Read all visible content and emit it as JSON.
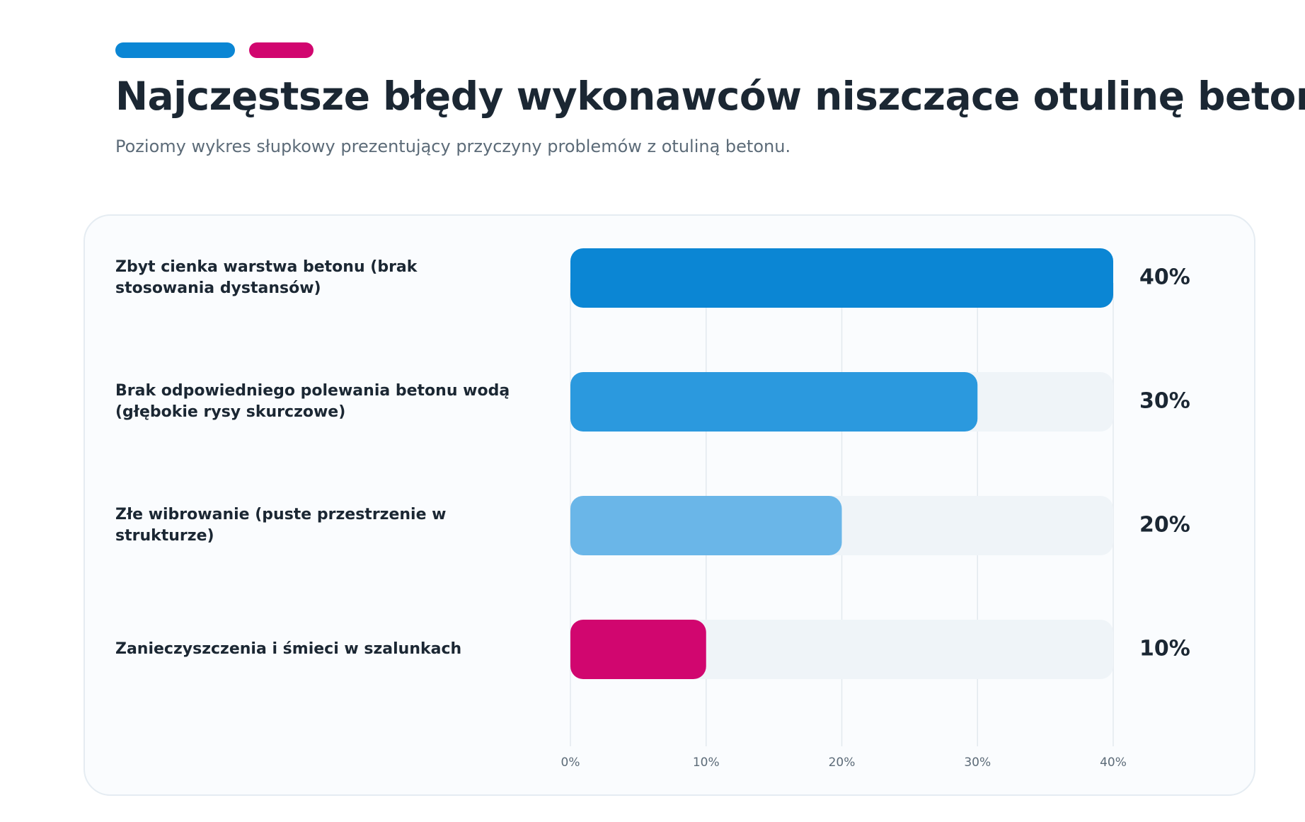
{
  "header": {
    "accent_colors": [
      "#0b86d4",
      "#d1066f"
    ],
    "title": "Najczęstsze błędy wykonawców niszczące otulinę betonu",
    "subtitle": "Poziomy wykres słupkowy prezentujący przyczyny problemów z otuliną betonu."
  },
  "chart_data": {
    "type": "bar",
    "orientation": "horizontal",
    "categories": [
      "Zbyt cienka warstwa betonu (brak stosowania dystansów)",
      "Brak odpowiedniego polewania betonu wodą (głębokie rysy skurczowe)",
      "Złe wibrowanie (puste przestrzenie w strukturze)",
      "Zanieczyszczenia i śmieci w szalunkach"
    ],
    "values": [
      40,
      30,
      20,
      10
    ],
    "value_labels": [
      "40%",
      "30%",
      "20%",
      "10%"
    ],
    "bar_colors": [
      "#0b86d4",
      "#2b99de",
      "#6ab6e8",
      "#d1066f"
    ],
    "track_color": "#eff4f8",
    "xlim": [
      0,
      40
    ],
    "xticks": [
      0,
      10,
      20,
      30,
      40
    ],
    "xtick_labels": [
      "0%",
      "10%",
      "20%",
      "30%",
      "40%"
    ],
    "grid": true
  }
}
